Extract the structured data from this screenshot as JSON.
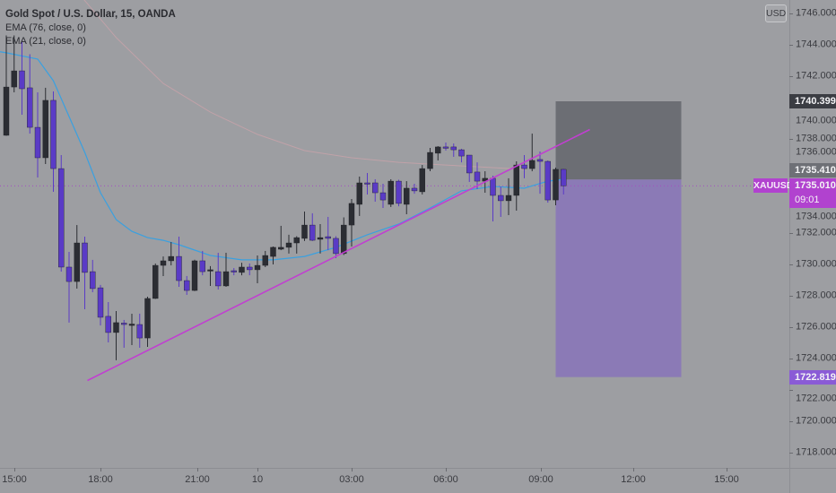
{
  "header": {
    "title": "Gold Spot / U.S. Dollar, 15, OANDA",
    "indicators": [
      "EMA (76, close, 0)",
      "EMA (21, close, 0)"
    ]
  },
  "currency_button": "USD",
  "colors": {
    "background": "#9d9ea2",
    "up_candle": "#2b2d33",
    "down_candle": "#5a3bc6",
    "ema21": "#3aa0e0",
    "ema76": "#c9a2aa",
    "trendline": "#c13fd1",
    "position_stop_zone": "#6c6e74",
    "position_target_zone": "#8b7ab6"
  },
  "chart_data": {
    "type": "candlestick",
    "symbol": "XAUUSD",
    "interval": "15",
    "ylim": [
      1717,
      1746.6
    ],
    "y_ticks": [
      "1746.000",
      "1744.000",
      "1742.000",
      "1740.000",
      "1738.000",
      "1736.000",
      "1734.000",
      "1732.000",
      "1730.000",
      "1728.000",
      "1726.000",
      "1724.000",
      "1722.000",
      "1720.000",
      "1718.000"
    ],
    "x_ticks": [
      "15:00",
      "18:00",
      "21:00",
      "10",
      "03:00",
      "06:00",
      "09:00",
      "12:00",
      "15:00"
    ],
    "grid": false,
    "candles": [
      {
        "t": "15:00",
        "o": 1738.23,
        "h": 1744.6,
        "l": 1738.2,
        "c": 1741.31
      },
      {
        "t": "15:15",
        "o": 1741.31,
        "h": 1744.6,
        "l": 1740.97,
        "c": 1742.34
      },
      {
        "t": "15:30",
        "o": 1742.34,
        "h": 1744.3,
        "l": 1739.54,
        "c": 1741.2
      },
      {
        "t": "15:45",
        "o": 1741.26,
        "h": 1743.4,
        "l": 1738.34,
        "c": 1738.74
      },
      {
        "t": "16:00",
        "o": 1738.74,
        "h": 1740.97,
        "l": 1735.54,
        "c": 1736.8
      },
      {
        "t": "16:15",
        "o": 1736.8,
        "h": 1741.26,
        "l": 1736.4,
        "c": 1740.46
      },
      {
        "t": "16:30",
        "o": 1740.46,
        "h": 1741.03,
        "l": 1734.63,
        "c": 1736.11
      },
      {
        "t": "16:45",
        "o": 1736.11,
        "h": 1736.97,
        "l": 1729.54,
        "c": 1729.83
      },
      {
        "t": "17:00",
        "o": 1729.83,
        "h": 1730.8,
        "l": 1726.29,
        "c": 1728.91
      },
      {
        "t": "17:15",
        "o": 1728.91,
        "h": 1732.51,
        "l": 1728.46,
        "c": 1731.37
      },
      {
        "t": "17:30",
        "o": 1731.37,
        "h": 1731.77,
        "l": 1727.14,
        "c": 1729.49
      },
      {
        "t": "17:45",
        "o": 1729.54,
        "h": 1730.29,
        "l": 1728.23,
        "c": 1728.46
      },
      {
        "t": "18:00",
        "o": 1728.51,
        "h": 1728.69,
        "l": 1726.11,
        "c": 1726.63
      },
      {
        "t": "18:15",
        "o": 1726.69,
        "h": 1727.6,
        "l": 1725.03,
        "c": 1725.66
      },
      {
        "t": "18:30",
        "o": 1725.66,
        "h": 1727.03,
        "l": 1723.89,
        "c": 1726.29
      },
      {
        "t": "18:45",
        "o": 1726.26,
        "h": 1726.46,
        "l": 1724.69,
        "c": 1726.17
      },
      {
        "t": "19:00",
        "o": 1726.11,
        "h": 1726.86,
        "l": 1724.86,
        "c": 1726.2
      },
      {
        "t": "19:15",
        "o": 1726.17,
        "h": 1726.86,
        "l": 1724.69,
        "c": 1725.31
      },
      {
        "t": "19:30",
        "o": 1725.31,
        "h": 1727.94,
        "l": 1724.74,
        "c": 1727.83
      },
      {
        "t": "19:45",
        "o": 1727.83,
        "h": 1730.06,
        "l": 1727.8,
        "c": 1729.94
      },
      {
        "t": "20:00",
        "o": 1729.94,
        "h": 1730.51,
        "l": 1729.26,
        "c": 1730.23
      },
      {
        "t": "20:15",
        "o": 1730.23,
        "h": 1731.43,
        "l": 1729.94,
        "c": 1730.51
      },
      {
        "t": "20:30",
        "o": 1730.51,
        "h": 1731.77,
        "l": 1728.57,
        "c": 1728.97
      },
      {
        "t": "20:45",
        "o": 1728.97,
        "h": 1729.26,
        "l": 1728.06,
        "c": 1728.34
      },
      {
        "t": "21:00",
        "o": 1728.34,
        "h": 1730.3,
        "l": 1728.3,
        "c": 1730.23
      },
      {
        "t": "21:15",
        "o": 1730.23,
        "h": 1730.86,
        "l": 1729.31,
        "c": 1729.54
      },
      {
        "t": "21:30",
        "o": 1729.6,
        "h": 1729.89,
        "l": 1728.63,
        "c": 1729.66
      },
      {
        "t": "21:45",
        "o": 1729.54,
        "h": 1730.74,
        "l": 1728.4,
        "c": 1728.63
      },
      {
        "t": "22:00",
        "o": 1728.63,
        "h": 1730.74,
        "l": 1728.57,
        "c": 1729.54
      },
      {
        "t": "22:15",
        "o": 1729.6,
        "h": 1729.77,
        "l": 1729.31,
        "c": 1729.54
      },
      {
        "t": "22:30",
        "o": 1729.49,
        "h": 1730.11,
        "l": 1729.31,
        "c": 1729.83
      },
      {
        "t": "22:45",
        "o": 1729.83,
        "h": 1730.06,
        "l": 1729.31,
        "c": 1729.66
      },
      {
        "t": "00:00",
        "o": 1729.66,
        "h": 1730.57,
        "l": 1728.8,
        "c": 1729.94
      },
      {
        "t": "00:15",
        "o": 1729.94,
        "h": 1730.86,
        "l": 1729.83,
        "c": 1730.57
      },
      {
        "t": "00:30",
        "o": 1730.51,
        "h": 1731.14,
        "l": 1730.0,
        "c": 1731.09
      },
      {
        "t": "00:45",
        "o": 1730.97,
        "h": 1732.46,
        "l": 1730.91,
        "c": 1731.09
      },
      {
        "t": "01:00",
        "o": 1731.09,
        "h": 1731.89,
        "l": 1730.69,
        "c": 1731.37
      },
      {
        "t": "01:15",
        "o": 1731.37,
        "h": 1731.8,
        "l": 1730.69,
        "c": 1731.71
      },
      {
        "t": "01:30",
        "o": 1731.66,
        "h": 1733.37,
        "l": 1731.49,
        "c": 1732.51
      },
      {
        "t": "01:45",
        "o": 1732.51,
        "h": 1733.26,
        "l": 1731.49,
        "c": 1731.54
      },
      {
        "t": "02:00",
        "o": 1731.6,
        "h": 1732.57,
        "l": 1730.69,
        "c": 1731.71
      },
      {
        "t": "02:15",
        "o": 1731.77,
        "h": 1733.03,
        "l": 1730.91,
        "c": 1731.66
      },
      {
        "t": "02:30",
        "o": 1731.66,
        "h": 1731.8,
        "l": 1730.4,
        "c": 1730.69
      },
      {
        "t": "02:45",
        "o": 1730.69,
        "h": 1733.0,
        "l": 1730.6,
        "c": 1732.51
      },
      {
        "t": "03:00",
        "o": 1732.51,
        "h": 1734.17,
        "l": 1731.14,
        "c": 1733.89
      },
      {
        "t": "03:15",
        "o": 1733.83,
        "h": 1735.6,
        "l": 1733.09,
        "c": 1735.2
      },
      {
        "t": "03:30",
        "o": 1735.2,
        "h": 1735.83,
        "l": 1734.46,
        "c": 1735.14
      },
      {
        "t": "03:45",
        "o": 1735.2,
        "h": 1735.43,
        "l": 1734.0,
        "c": 1734.57
      },
      {
        "t": "04:00",
        "o": 1734.57,
        "h": 1735.14,
        "l": 1733.6,
        "c": 1734.11
      },
      {
        "t": "04:15",
        "o": 1733.83,
        "h": 1735.43,
        "l": 1733.66,
        "c": 1735.31
      },
      {
        "t": "04:30",
        "o": 1735.31,
        "h": 1735.4,
        "l": 1733.71,
        "c": 1733.89
      },
      {
        "t": "04:45",
        "o": 1733.83,
        "h": 1735.31,
        "l": 1733.2,
        "c": 1734.86
      },
      {
        "t": "05:00",
        "o": 1734.86,
        "h": 1735.14,
        "l": 1734.51,
        "c": 1734.69
      },
      {
        "t": "05:15",
        "o": 1734.63,
        "h": 1736.34,
        "l": 1734.46,
        "c": 1736.11
      },
      {
        "t": "05:30",
        "o": 1736.11,
        "h": 1737.43,
        "l": 1735.94,
        "c": 1737.14
      },
      {
        "t": "05:45",
        "o": 1737.09,
        "h": 1737.54,
        "l": 1736.63,
        "c": 1737.49
      },
      {
        "t": "06:00",
        "o": 1737.49,
        "h": 1737.77,
        "l": 1737.26,
        "c": 1737.43
      },
      {
        "t": "06:15",
        "o": 1737.49,
        "h": 1737.71,
        "l": 1736.86,
        "c": 1737.31
      },
      {
        "t": "06:30",
        "o": 1737.31,
        "h": 1737.37,
        "l": 1736.51,
        "c": 1736.91
      },
      {
        "t": "06:45",
        "o": 1736.97,
        "h": 1736.97,
        "l": 1735.26,
        "c": 1735.83
      },
      {
        "t": "07:00",
        "o": 1735.89,
        "h": 1736.51,
        "l": 1734.8,
        "c": 1735.31
      },
      {
        "t": "07:15",
        "o": 1735.31,
        "h": 1735.94,
        "l": 1734.57,
        "c": 1735.49
      },
      {
        "t": "07:30",
        "o": 1735.49,
        "h": 1735.66,
        "l": 1732.74,
        "c": 1734.4
      },
      {
        "t": "07:45",
        "o": 1734.4,
        "h": 1734.97,
        "l": 1733.03,
        "c": 1734.06
      },
      {
        "t": "08:00",
        "o": 1734.06,
        "h": 1735.49,
        "l": 1733.14,
        "c": 1734.4
      },
      {
        "t": "08:15",
        "o": 1734.4,
        "h": 1736.57,
        "l": 1733.43,
        "c": 1736.34
      },
      {
        "t": "08:30",
        "o": 1736.34,
        "h": 1736.97,
        "l": 1735.49,
        "c": 1736.11
      },
      {
        "t": "08:45",
        "o": 1736.11,
        "h": 1738.34,
        "l": 1735.94,
        "c": 1736.63
      },
      {
        "t": "09:00",
        "o": 1736.69,
        "h": 1737.2,
        "l": 1734.51,
        "c": 1736.57
      },
      {
        "t": "09:15",
        "o": 1736.57,
        "h": 1736.63,
        "l": 1733.94,
        "c": 1734.11
      },
      {
        "t": "09:30",
        "o": 1734.11,
        "h": 1736.17,
        "l": 1733.77,
        "c": 1736.06
      },
      {
        "t": "09:45",
        "o": 1736.06,
        "h": 1736.11,
        "l": 1734.46,
        "c": 1735.01
      }
    ],
    "ema21": [
      {
        "t": "15:00",
        "v": 1743.49
      },
      {
        "t": "16:00",
        "v": 1743.09
      },
      {
        "t": "16:30",
        "v": 1741.71
      },
      {
        "t": "17:00",
        "v": 1739.43
      },
      {
        "t": "17:30",
        "v": 1737.14
      },
      {
        "t": "18:00",
        "v": 1734.57
      },
      {
        "t": "18:30",
        "v": 1732.86
      },
      {
        "t": "19:00",
        "v": 1732.11
      },
      {
        "t": "19:30",
        "v": 1731.71
      },
      {
        "t": "20:00",
        "v": 1731.54
      },
      {
        "t": "20:30",
        "v": 1731.26
      },
      {
        "t": "21:30",
        "v": 1730.57
      },
      {
        "t": "22:30",
        "v": 1730.29
      },
      {
        "t": "00:30",
        "v": 1730.29
      },
      {
        "t": "01:30",
        "v": 1730.51
      },
      {
        "t": "02:30",
        "v": 1731.09
      },
      {
        "t": "03:30",
        "v": 1731.89
      },
      {
        "t": "04:30",
        "v": 1732.57
      },
      {
        "t": "05:30",
        "v": 1733.6
      },
      {
        "t": "06:30",
        "v": 1734.69
      },
      {
        "t": "07:30",
        "v": 1734.97
      },
      {
        "t": "08:30",
        "v": 1734.86
      },
      {
        "t": "09:15",
        "v": 1735.31
      },
      {
        "t": "09:45",
        "v": 1735.43
      }
    ],
    "ema76": [
      {
        "t": "18:30",
        "v": 1744.46
      },
      {
        "t": "20:00",
        "v": 1741.54
      },
      {
        "t": "21:30",
        "v": 1739.71
      },
      {
        "t": "00:00",
        "v": 1738.29
      },
      {
        "t": "01:30",
        "v": 1737.26
      },
      {
        "t": "03:00",
        "v": 1736.8
      },
      {
        "t": "04:30",
        "v": 1736.51
      },
      {
        "t": "06:00",
        "v": 1736.34
      },
      {
        "t": "07:30",
        "v": 1736.17
      },
      {
        "t": "08:30",
        "v": 1736.06
      }
    ],
    "trendline": {
      "start": {
        "t": "17:30",
        "price": 1722.6
      },
      "end": {
        "t": "10:30",
        "price": 1738.6
      }
    },
    "position": {
      "start": "09:30",
      "end": "13:30",
      "stop": "1740.399",
      "entry": "1735.410",
      "target": "1722.819"
    },
    "last_price": {
      "symbol": "XAUUSD",
      "price": "1735.010",
      "countdown": "09:01"
    }
  }
}
